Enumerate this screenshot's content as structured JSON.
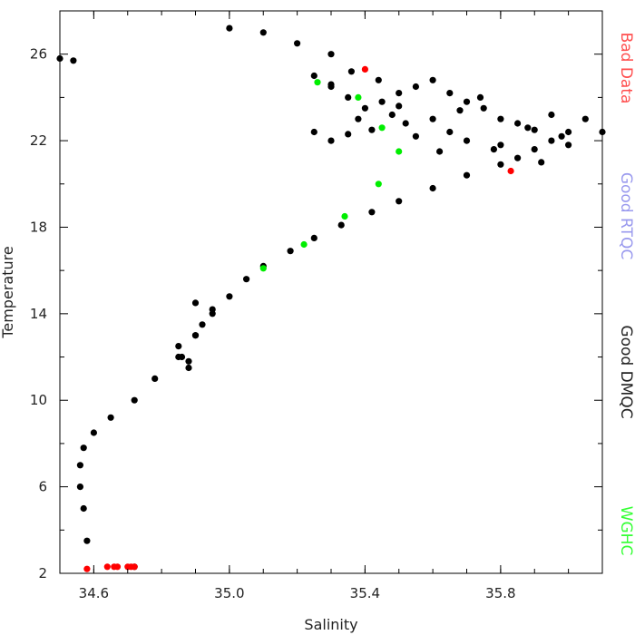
{
  "chart_data": {
    "type": "scatter",
    "xlabel": "Salinity",
    "ylabel": "Temperature",
    "xlim": [
      34.5,
      36.1
    ],
    "ylim": [
      2,
      28
    ],
    "xticks": [
      34.6,
      35.0,
      35.4,
      35.8
    ],
    "xtick_labels": [
      "34.6",
      "35.0",
      "35.4",
      "35.8"
    ],
    "yticks": [
      2,
      6,
      10,
      14,
      18,
      22,
      26
    ],
    "ytick_labels": [
      "2",
      "6",
      "10",
      "14",
      "18",
      "22",
      "26"
    ],
    "grid": false,
    "legend_placement": "right-outside-vertical",
    "legend": [
      {
        "name": "Bad Data",
        "color": "#ff4d4d"
      },
      {
        "name": "Good RTQC",
        "color": "#9999ee"
      },
      {
        "name": "Good DMQC",
        "color": "#222222"
      },
      {
        "name": "WGHC",
        "color": "#33ff33"
      }
    ],
    "series": [
      {
        "name": "Good DMQC",
        "color": "#000000",
        "note": "dense cloud along T-S curve",
        "x": [
          34.5,
          34.54,
          34.72,
          34.58,
          34.57,
          34.56,
          34.56,
          34.57,
          34.6,
          34.65,
          34.72,
          34.78,
          34.85,
          34.9,
          34.95,
          35.0,
          35.05,
          35.1,
          35.18,
          35.25,
          35.33,
          35.42,
          35.5,
          35.6,
          35.7,
          35.8,
          35.9,
          36.0,
          36.05,
          36.1,
          34.85,
          34.92,
          34.88,
          34.86,
          34.9,
          34.95,
          34.9,
          34.88,
          35.0,
          35.1,
          35.2,
          35.3,
          35.25,
          35.3,
          35.35,
          35.4,
          35.45,
          35.5,
          35.55,
          35.6,
          35.65,
          35.7,
          35.75,
          35.8,
          35.85,
          35.9,
          35.95,
          36.0,
          35.3,
          35.35,
          35.38,
          35.42,
          35.48,
          35.52,
          35.6,
          35.65,
          35.7,
          35.78,
          35.85,
          35.92,
          35.98,
          35.25,
          35.3,
          35.36,
          35.44,
          35.5,
          35.55,
          35.62,
          35.68,
          35.74,
          35.8,
          35.88,
          35.95
        ],
        "y": [
          25.8,
          25.7,
          2.3,
          3.5,
          5.0,
          6.0,
          7.0,
          7.8,
          8.5,
          9.2,
          10.0,
          11.0,
          12.0,
          13.0,
          14.0,
          14.8,
          15.6,
          16.2,
          16.9,
          17.5,
          18.1,
          18.7,
          19.2,
          19.8,
          20.4,
          20.9,
          21.6,
          22.4,
          23.0,
          22.4,
          12.5,
          13.5,
          11.5,
          12.0,
          13.0,
          14.2,
          14.5,
          11.8,
          27.2,
          27.0,
          26.5,
          26.0,
          25.0,
          24.5,
          24.0,
          23.5,
          23.8,
          24.2,
          24.5,
          24.8,
          24.2,
          23.8,
          23.5,
          23.0,
          22.8,
          22.5,
          22.0,
          21.8,
          22.0,
          22.3,
          23.0,
          22.5,
          23.2,
          22.8,
          23.0,
          22.4,
          22.0,
          21.6,
          21.2,
          21.0,
          22.2,
          22.4,
          24.6,
          25.2,
          24.8,
          23.6,
          22.2,
          21.5,
          23.4,
          24.0,
          21.8,
          22.6,
          23.2
        ]
      },
      {
        "name": "Bad Data",
        "color": "#ff0000",
        "x": [
          34.58,
          34.64,
          34.66,
          34.67,
          34.7,
          34.71,
          34.72,
          35.4,
          35.83
        ],
        "y": [
          2.2,
          2.3,
          2.3,
          2.3,
          2.3,
          2.3,
          2.3,
          25.3,
          20.6
        ]
      },
      {
        "name": "WGHC",
        "color": "#00ee00",
        "x": [
          35.1,
          35.22,
          35.34,
          35.44,
          35.5,
          35.45,
          35.38,
          35.26
        ],
        "y": [
          16.1,
          17.2,
          18.5,
          20.0,
          21.5,
          22.6,
          24.0,
          24.7
        ]
      }
    ]
  }
}
